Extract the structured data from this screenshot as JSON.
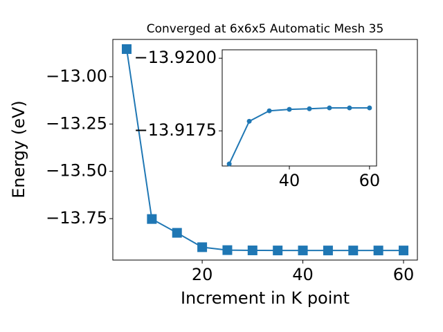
{
  "chart_data": [
    {
      "type": "line",
      "title": "Converged at 6x6x5 Automatic Mesh 35",
      "xlabel": "Increment in K point",
      "ylabel": "Energy (eV)",
      "x": [
        5,
        10,
        15,
        20,
        25,
        30,
        35,
        40,
        45,
        50,
        55,
        60
      ],
      "series": [
        {
          "color": "#1f77b4",
          "marker": "square",
          "values": [
            -12.854,
            -13.752,
            -13.825,
            -13.901,
            -13.9164,
            -13.9178,
            -13.9182,
            -13.9182,
            -13.9183,
            -13.9183,
            -13.9183,
            -13.9183
          ]
        }
      ],
      "xlim": [
        2.25,
        62.75
      ],
      "xticks": [
        20,
        40,
        60
      ],
      "ylim": [
        -13.969,
        -12.803
      ],
      "yticks": [
        {
          "value": -13.0,
          "label": "−13.00"
        },
        {
          "value": -13.25,
          "label": "−13.25"
        },
        {
          "value": -13.5,
          "label": "−13.50"
        },
        {
          "value": -13.75,
          "label": "−13.75"
        }
      ]
    },
    {
      "type": "line",
      "x": [
        25,
        30,
        35,
        40,
        45,
        50,
        55,
        60
      ],
      "series": [
        {
          "color": "#1f77b4",
          "marker": "circle",
          "values": [
            -13.91636,
            -13.91783,
            -13.91819,
            -13.91824,
            -13.91826,
            -13.91829,
            -13.91829,
            -13.91829
          ]
        }
      ],
      "xlim": [
        23.25,
        61.75
      ],
      "xticks": [
        40,
        60
      ],
      "ylim": [
        -13.91629,
        -13.92029
      ],
      "yticks": [
        {
          "value": -13.92,
          "label": "−13.9200"
        },
        {
          "value": -13.9175,
          "label": "−13.9175"
        }
      ]
    }
  ]
}
